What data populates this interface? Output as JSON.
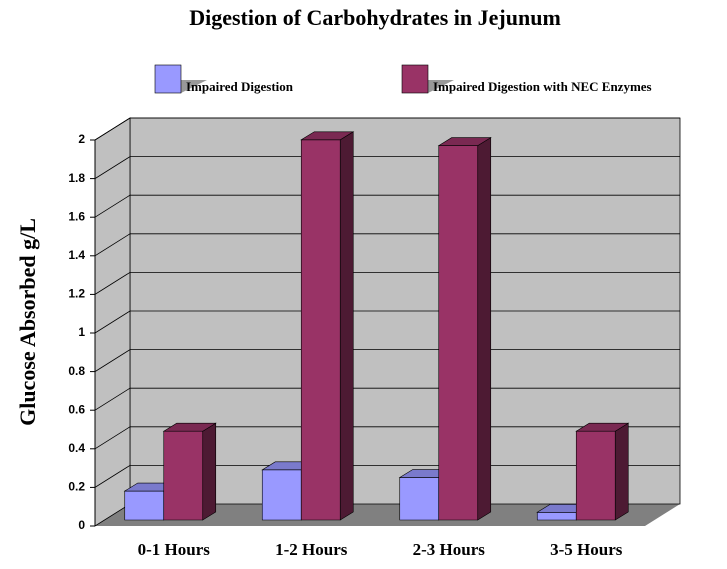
{
  "chart_data": {
    "type": "bar3d",
    "title": "Digestion of Carbohydrates in Jejunum",
    "y_label": "Glucose  Absorbed g/L",
    "categories": [
      "0-1 Hours",
      "1-2 Hours",
      "2-3 Hours",
      "3-5 Hours"
    ],
    "series": [
      {
        "name": "Impaired Digestion",
        "color": "#9999ff",
        "values": [
          0.15,
          0.26,
          0.22,
          0.04
        ]
      },
      {
        "name": "Impaired Digestion with NEC Enzymes",
        "color": "#993366",
        "values": [
          0.46,
          1.97,
          1.94,
          0.46
        ]
      }
    ],
    "ylim": [
      0,
      2
    ],
    "yticks": [
      0,
      0.2,
      0.4,
      0.6,
      0.8,
      1,
      1.2,
      1.4,
      1.6,
      1.8,
      2
    ],
    "grid": true
  }
}
